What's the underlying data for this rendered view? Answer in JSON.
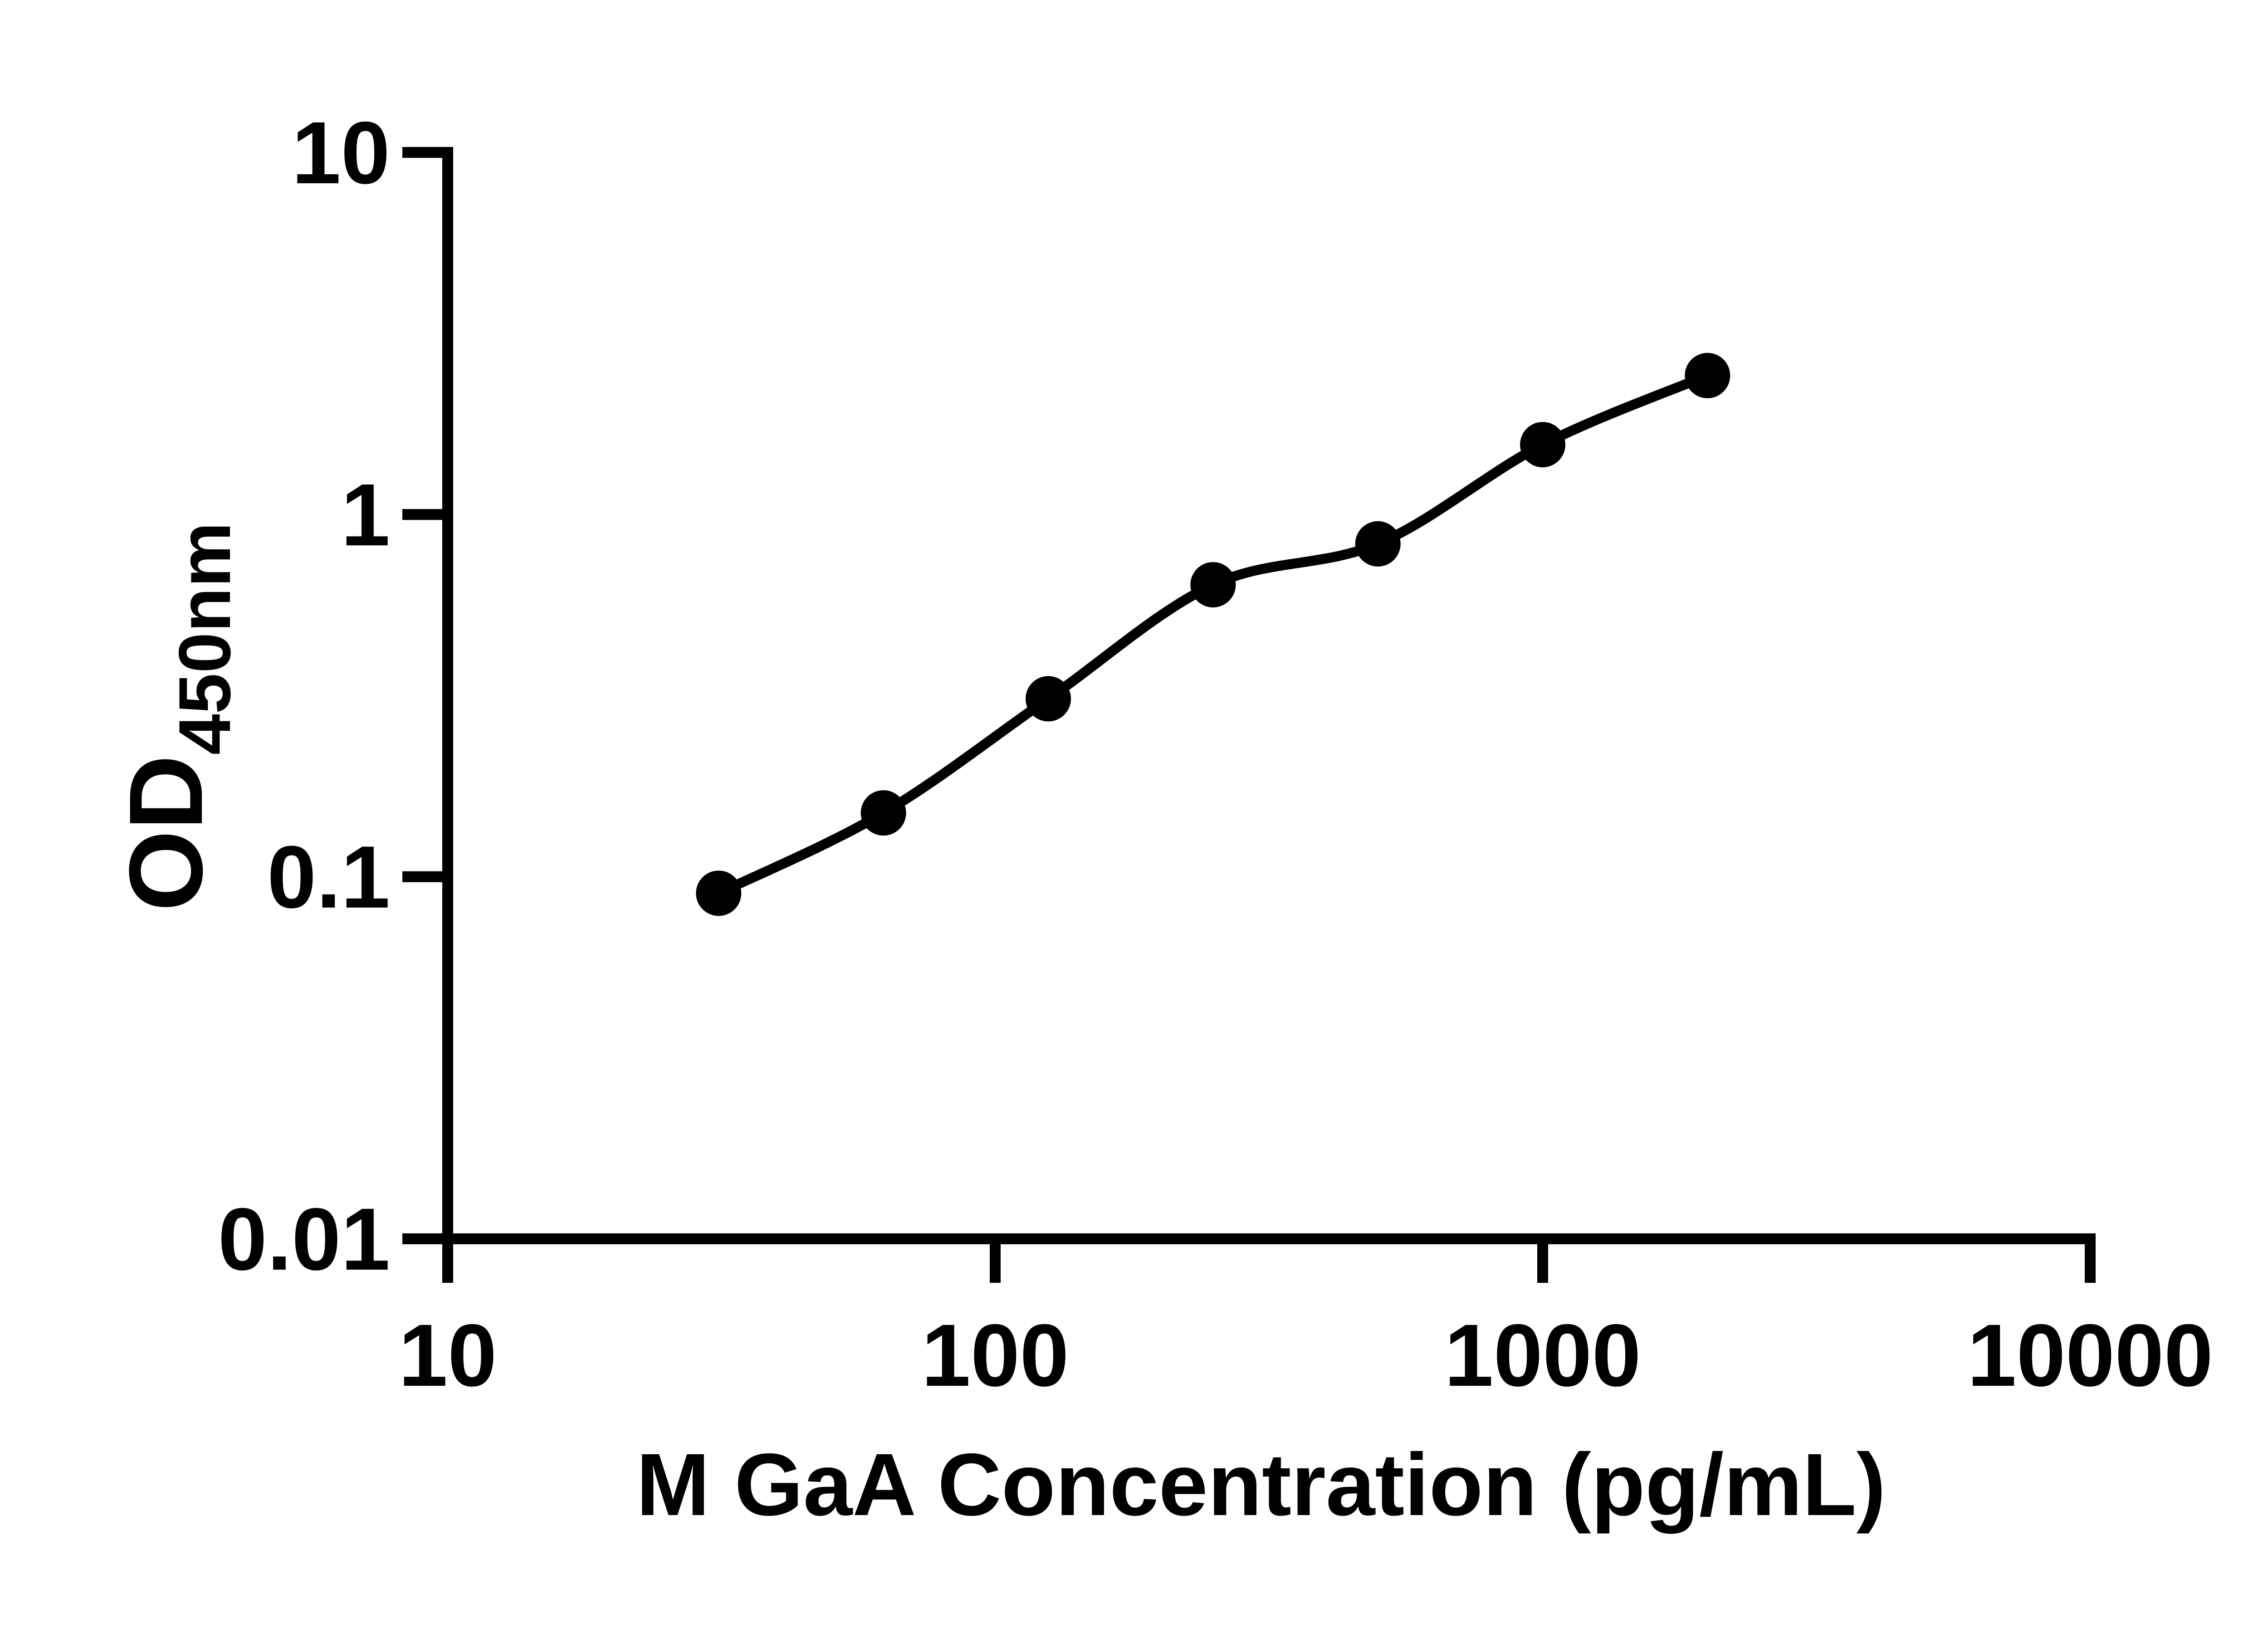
{
  "figure": {
    "background_color": "#ffffff",
    "ink_color": "#000000",
    "title": ""
  },
  "chart_data": {
    "type": "scatter",
    "subtype": "elisa-standard-curve",
    "title": "",
    "xlabel": "M GaA Concentration (pg/mL)",
    "ylabel": "OD",
    "ylabel_subscript": "450nm",
    "x_scale": "log10",
    "y_scale": "log10",
    "xlim": [
      10,
      10000
    ],
    "ylim": [
      0.01,
      10
    ],
    "x_ticks": [
      10,
      100,
      1000,
      10000
    ],
    "x_tick_labels": [
      "10",
      "100",
      "1000",
      "10000"
    ],
    "y_ticks": [
      0.01,
      0.1,
      1,
      10
    ],
    "y_tick_labels": [
      "0.01",
      "0.1",
      "1",
      "10"
    ],
    "grid": false,
    "legend": null,
    "series": [
      {
        "name": "standard-curve",
        "marker": "filled-circle",
        "marker_color": "#000000",
        "line": "smooth-fit",
        "line_color": "#000000",
        "points": [
          {
            "x": 31.25,
            "y": 0.09
          },
          {
            "x": 62.5,
            "y": 0.15
          },
          {
            "x": 125,
            "y": 0.31
          },
          {
            "x": 250,
            "y": 0.64
          },
          {
            "x": 500,
            "y": 0.83
          },
          {
            "x": 1000,
            "y": 1.56
          },
          {
            "x": 2000,
            "y": 2.42
          }
        ]
      }
    ]
  }
}
